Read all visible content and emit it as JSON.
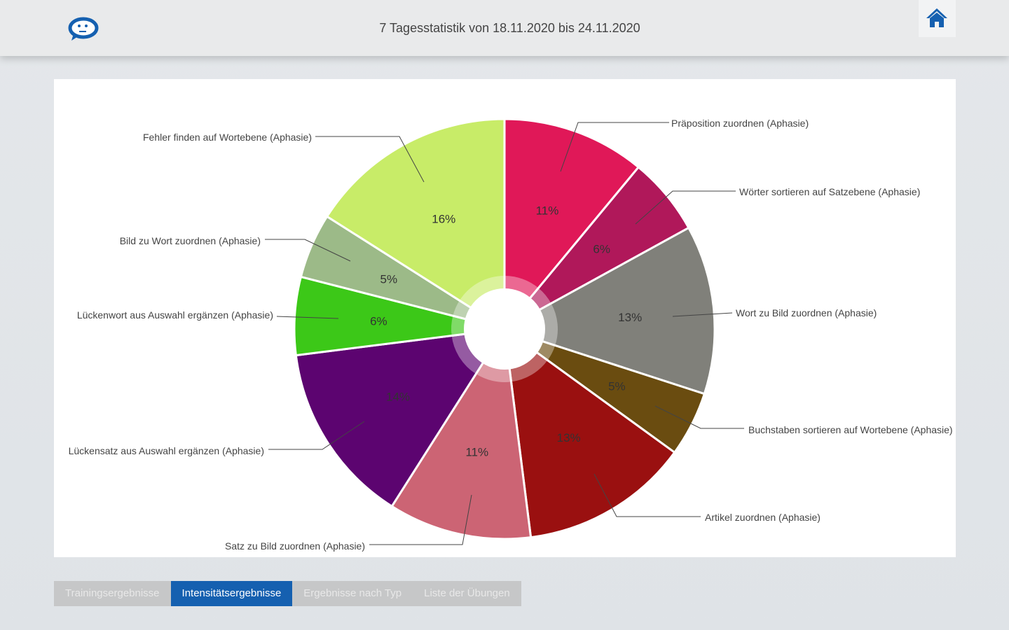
{
  "header": {
    "title": "7 Tagesstatistik von 18.11.2020 bis 24.11.2020",
    "left_icon": "chat-bubble-face-icon",
    "right_icon": "home-icon"
  },
  "colors": {
    "accent": "#1560b0"
  },
  "chart_data": {
    "type": "pie",
    "donut_hole": true,
    "slices": [
      {
        "label": "Präposition zuordnen (Aphasie)",
        "value": 11,
        "pct_label": "11%",
        "color": "#e01858"
      },
      {
        "label": "Wörter sortieren auf Satzebene (Aphasie)",
        "value": 6,
        "pct_label": "6%",
        "color": "#b0185a"
      },
      {
        "label": "Wort zu Bild zuordnen (Aphasie)",
        "value": 13,
        "pct_label": "13%",
        "color": "#80807a"
      },
      {
        "label": "Buchstaben sortieren auf Wortebene (Aphasie)",
        "value": 5,
        "pct_label": "5%",
        "color": "#6a4c10"
      },
      {
        "label": "Artikel zuordnen (Aphasie)",
        "value": 13,
        "pct_label": "13%",
        "color": "#9a1010"
      },
      {
        "label": "Satz zu Bild zuordnen (Aphasie)",
        "value": 11,
        "pct_label": "11%",
        "color": "#cc6474"
      },
      {
        "label": "Lückensatz aus Auswahl ergänzen (Aphasie)",
        "value": 14,
        "pct_label": "14%",
        "color": "#5c0470"
      },
      {
        "label": "Lückenwort aus Auswahl ergänzen (Aphasie)",
        "value": 6,
        "pct_label": "6%",
        "color": "#3cc818"
      },
      {
        "label": "Bild zu Wort zuordnen (Aphasie)",
        "value": 5,
        "pct_label": "5%",
        "color": "#9cba88"
      },
      {
        "label": "Fehler finden auf Wortebene (Aphasie)",
        "value": 16,
        "pct_label": "16%",
        "color": "#c8ec68"
      }
    ]
  },
  "tabs": [
    {
      "label": "Trainingsergebnisse",
      "active": false
    },
    {
      "label": "Intensitätsergebnisse",
      "active": true
    },
    {
      "label": "Ergebnisse nach Typ",
      "active": false
    },
    {
      "label": "Liste der Übungen",
      "active": false
    }
  ]
}
